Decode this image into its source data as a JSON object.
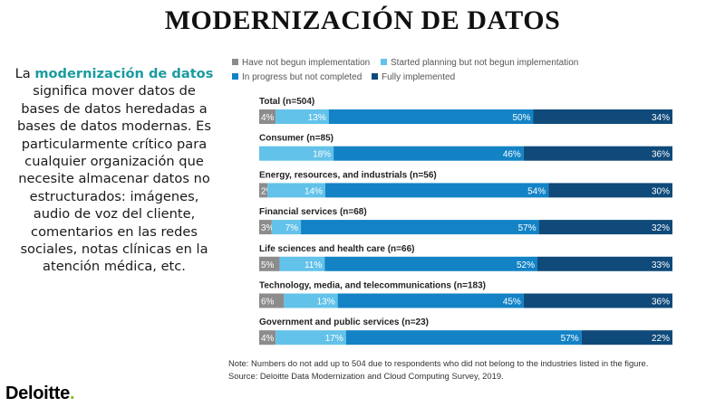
{
  "slide": {
    "title": "MODERNIZACIÓN DE DATOS",
    "body_highlight": "modernización de datos",
    "body_pre": "La ",
    "body_post": " significa mover datos de bases de datos heredadas a bases de datos modernas. Es particularmente crítico para cualquier organización que necesite almacenar datos no estructurados: imágenes, audio de voz del cliente, comentarios en las redes sociales, notas clínicas en la atención médica, etc.",
    "brand": "Deloitte",
    "brand_dot": "."
  },
  "colors": {
    "not_begun": "#8c8c8c",
    "planning": "#62c2ea",
    "in_progress": "#1383c6",
    "fully": "#0f4a7a",
    "accent": "#1a9b9f",
    "brand_dot": "#86bc25"
  },
  "chart_data": {
    "type": "bar",
    "orientation": "horizontal-stacked-100",
    "legend_placement": "top",
    "series": [
      {
        "name": "Have not begun implementation",
        "values": [
          4,
          0,
          2,
          3,
          5,
          6,
          4
        ]
      },
      {
        "name": "Started planning but not begun implementation",
        "values": [
          13,
          18,
          14,
          7,
          11,
          13,
          17
        ]
      },
      {
        "name": "In progress but not completed",
        "values": [
          50,
          46,
          54,
          57,
          52,
          45,
          57
        ]
      },
      {
        "name": "Fully implemented",
        "values": [
          34,
          36,
          30,
          32,
          33,
          36,
          22
        ]
      }
    ],
    "categories": [
      "Total (n=504)",
      "Consumer (n=85)",
      "Energy, resources, and industrials (n=56)",
      "Financial services (n=68)",
      "Life sciences and health care (n=66)",
      "Technology, media, and telecommunications (n=183)",
      "Government and public services (n=23)"
    ],
    "value_suffix": "%",
    "note": "Note: Numbers do not add up to 504 due to respondents who did not belong to the industries listed in the figure.",
    "source": "Source: Deloitte Data Modernization and Cloud Computing Survey, 2019."
  }
}
